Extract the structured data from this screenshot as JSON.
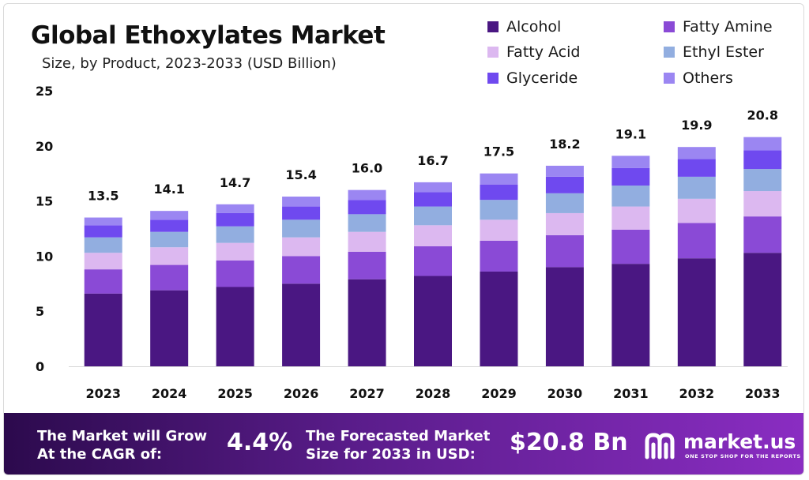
{
  "header": {
    "title": "Global Ethoxylates Market",
    "subtitle": "Size, by Product, 2023-2033 (USD Billion)"
  },
  "chart_data": {
    "type": "bar",
    "stacked": true,
    "title": "Global Ethoxylates Market",
    "subtitle": "Size, by Product, 2023-2033 (USD Billion)",
    "categories": [
      "2023",
      "2024",
      "2025",
      "2026",
      "2027",
      "2028",
      "2029",
      "2030",
      "2031",
      "2032",
      "2033"
    ],
    "totals": [
      13.5,
      14.1,
      14.7,
      15.4,
      16.0,
      16.7,
      17.5,
      18.2,
      19.1,
      19.9,
      20.8
    ],
    "total_labels": [
      "13.5",
      "14.1",
      "14.7",
      "15.4",
      "16.0",
      "16.7",
      "17.5",
      "18.2",
      "19.1",
      "19.9",
      "20.8"
    ],
    "series": [
      {
        "name": "Alcohol",
        "color": "#4a1782",
        "values": [
          6.6,
          6.9,
          7.2,
          7.5,
          7.9,
          8.2,
          8.6,
          9.0,
          9.3,
          9.8,
          10.3
        ]
      },
      {
        "name": "Fatty Amine",
        "color": "#8a4ad6",
        "values": [
          2.2,
          2.3,
          2.4,
          2.5,
          2.5,
          2.7,
          2.8,
          2.9,
          3.1,
          3.2,
          3.3
        ]
      },
      {
        "name": "Fatty Acid",
        "color": "#dcb8f0",
        "values": [
          1.5,
          1.6,
          1.6,
          1.7,
          1.8,
          1.9,
          1.9,
          2.0,
          2.1,
          2.2,
          2.3
        ]
      },
      {
        "name": "Ethyl Ester",
        "color": "#92aee0",
        "values": [
          1.4,
          1.4,
          1.5,
          1.6,
          1.6,
          1.7,
          1.8,
          1.8,
          1.9,
          2.0,
          2.0
        ]
      },
      {
        "name": "Glyceride",
        "color": "#6f49ef",
        "values": [
          1.1,
          1.1,
          1.2,
          1.2,
          1.3,
          1.3,
          1.4,
          1.5,
          1.6,
          1.6,
          1.7
        ]
      },
      {
        "name": "Others",
        "color": "#9b86f2",
        "values": [
          0.7,
          0.8,
          0.8,
          0.9,
          0.9,
          0.9,
          1.0,
          1.0,
          1.1,
          1.1,
          1.2
        ]
      }
    ],
    "yticks": [
      "0",
      "5",
      "10",
      "15",
      "20",
      "25"
    ],
    "ylim": [
      0,
      25
    ],
    "grid": false,
    "legend_position": "top-right"
  },
  "legend": {
    "items": [
      {
        "label": "Alcohol",
        "color": "#4a1782"
      },
      {
        "label": "Fatty Amine",
        "color": "#8a4ad6"
      },
      {
        "label": "Fatty Acid",
        "color": "#dcb8f0"
      },
      {
        "label": "Ethyl Ester",
        "color": "#92aee0"
      },
      {
        "label": "Glyceride",
        "color": "#6f49ef"
      },
      {
        "label": "Others",
        "color": "#9b86f2"
      }
    ]
  },
  "banner": {
    "cagr_label_line1": "The Market will Grow",
    "cagr_label_line2": "At the CAGR of:",
    "cagr_value": "4.4%",
    "forecast_label_line1": "The Forecasted Market",
    "forecast_label_line2": "Size for 2033 in USD:",
    "forecast_value": "$20.8 Bn",
    "brand_name": "market.us",
    "brand_tagline": "ONE STOP SHOP FOR THE REPORTS"
  },
  "colors": {
    "banner_start": "#2c0a4d",
    "banner_end": "#8a2dc2"
  }
}
